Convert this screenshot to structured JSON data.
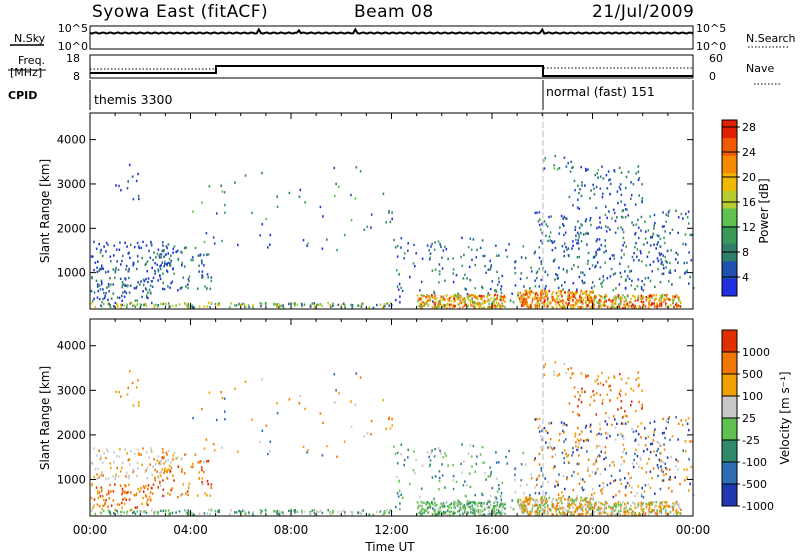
{
  "header": {
    "station": "Syowa East (fitACF)",
    "beam": "Beam 08",
    "date": "21/Jul/2009"
  },
  "strips": {
    "nsky_label": "N.Sky",
    "nsearch_label": "N.Search",
    "nsky_ticks": [
      "10^5",
      "10^0"
    ],
    "nsearch_ticks": [
      "10^5",
      "10^0"
    ],
    "freq_label_1": "Freq.",
    "freq_label_2": "[MHz]",
    "freq_ticks": [
      "18",
      "8"
    ],
    "nave_label": "Nave",
    "nave_ticks": [
      "60",
      "0"
    ],
    "cpid_label": "CPID",
    "modes": [
      {
        "name": "themis 3300",
        "start_hour": 0,
        "end_hour": 18
      },
      {
        "name": "normal (fast) 151",
        "start_hour": 18,
        "end_hour": 24
      }
    ]
  },
  "chart_data": [
    {
      "type": "heatmap",
      "parameter": "power",
      "xlabel": "",
      "ylabel": "Slant Range [km]",
      "xlim": [
        0,
        24
      ],
      "ylim": [
        180,
        4600
      ],
      "y_ticks": [
        "1000",
        "2000",
        "3000",
        "4000"
      ],
      "colorbar": {
        "label": "Power [dB]",
        "ticks": [
          "4",
          "8",
          "12",
          "16",
          "20",
          "24",
          "28"
        ],
        "colors": [
          "#2030e0",
          "#2050b0",
          "#2f7f6a",
          "#3a9a58",
          "#60c050",
          "#b6cc30",
          "#f0b800",
          "#f58a00",
          "#f25a00",
          "#e02000"
        ]
      }
    },
    {
      "type": "heatmap",
      "parameter": "velocity",
      "xlabel": "Time UT",
      "ylabel": "Slant Range [km]",
      "xlim": [
        0,
        24
      ],
      "ylim": [
        180,
        4600
      ],
      "y_ticks": [
        "1000",
        "2000",
        "3000",
        "4000"
      ],
      "x_ticks": [
        "00:00",
        "04:00",
        "08:00",
        "12:00",
        "16:00",
        "20:00",
        "00:00"
      ],
      "colorbar": {
        "label": "Velocity [m s⁻¹]",
        "ticks": [
          "1000",
          "500",
          "100",
          "25",
          "-25",
          "-100",
          "-500",
          "-1000"
        ],
        "colors": [
          "#2038b0",
          "#2f6eb0",
          "#2f8a6a",
          "#60c050",
          "#c8c8c8",
          "#f0a000",
          "#f07800",
          "#e03000"
        ]
      }
    }
  ]
}
